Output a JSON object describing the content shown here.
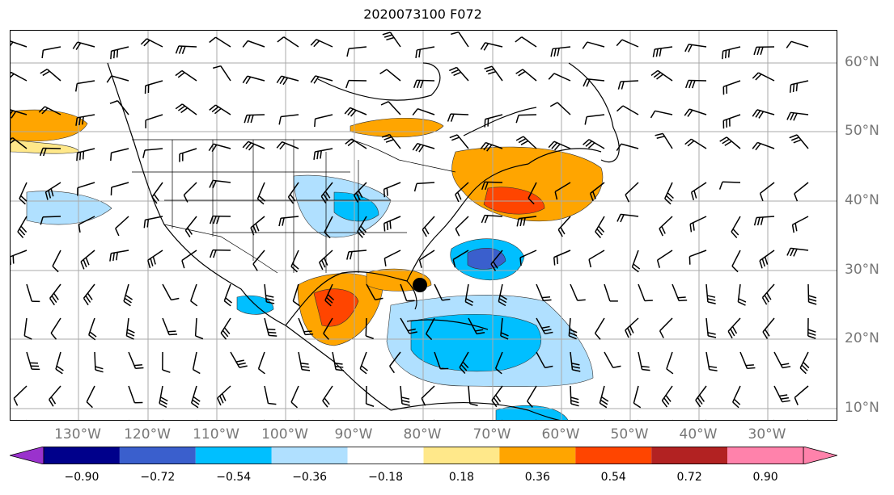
{
  "title": "2020073100 F072",
  "lon_labels": [
    "130°W",
    "120°W",
    "110°W",
    "100°W",
    "90°W",
    "80°W",
    "70°W",
    "60°W",
    "50°W",
    "40°W",
    "30°W"
  ],
  "lat_labels": [
    "60°N",
    "50°N",
    "40°N",
    "30°N",
    "20°N",
    "10°N"
  ],
  "colorbar": {
    "ticks": [
      "−0.90",
      "−0.72",
      "−0.54",
      "−0.36",
      "−0.18",
      "0.18",
      "0.36",
      "0.54",
      "0.72",
      "0.90"
    ],
    "colors": [
      "#9a32cd",
      "#00008b",
      "#3a5fcd",
      "#00bfff",
      "#b0e0ff",
      "#ffffff",
      "#ffe88a",
      "#ffa500",
      "#ff4500",
      "#b22222",
      "#ff82ab"
    ]
  },
  "marker": {
    "label": "storm-center",
    "lon": -80.5,
    "lat": 28
  }
}
